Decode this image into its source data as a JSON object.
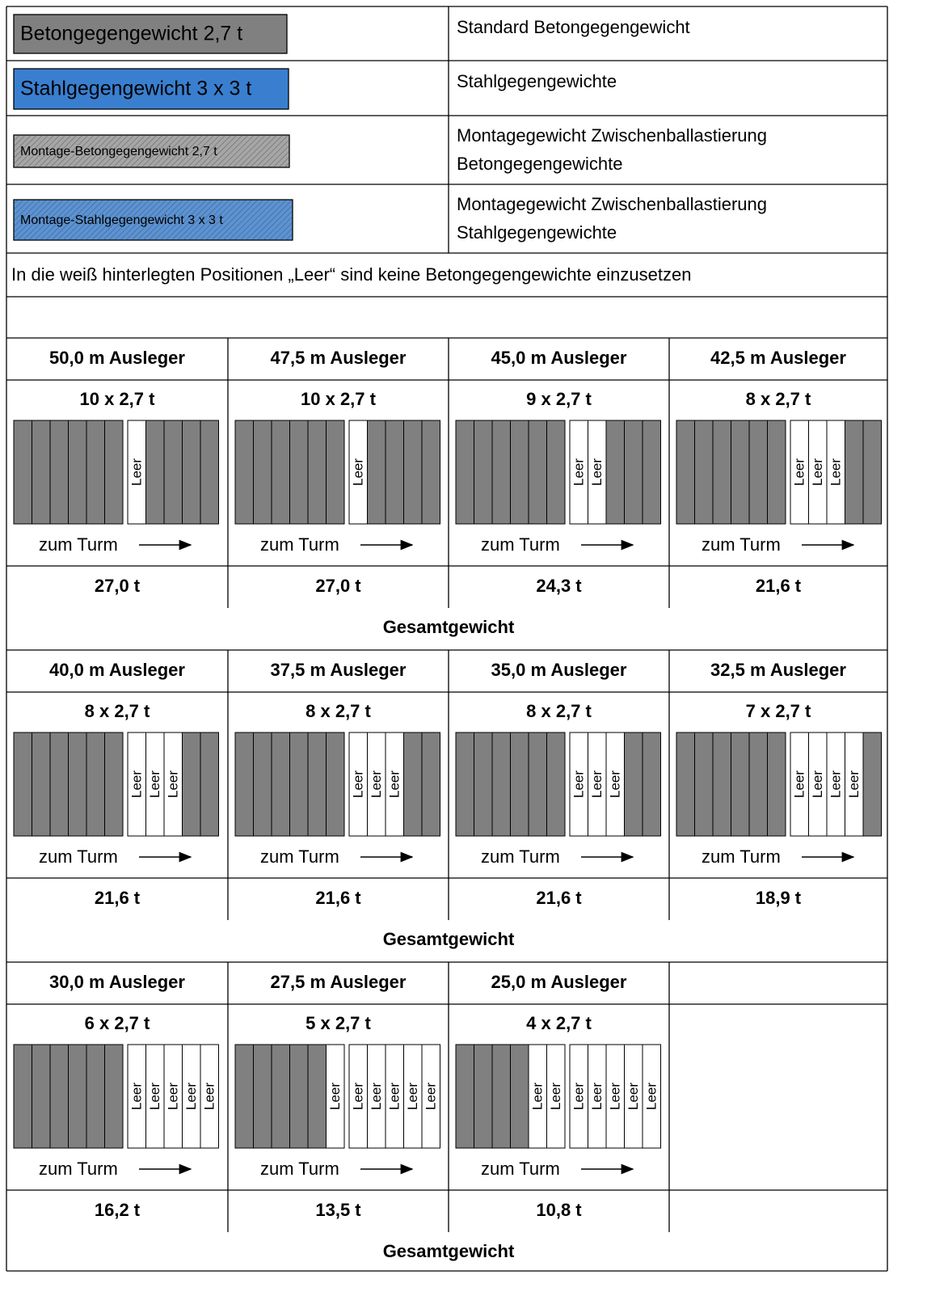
{
  "legend": [
    {
      "label": "Betongegengewicht 2,7 t",
      "description": [
        "Standard Betongegengewicht"
      ],
      "color": "#808080",
      "hatched": false
    },
    {
      "label": "Stahlgegengewicht 3 x 3 t",
      "description": [
        "Stahlgegengewichte"
      ],
      "color": "#3a7fcf",
      "hatched": false
    },
    {
      "label": "Montage-Betongegengewicht 2,7 t",
      "description": [
        "Montagegewicht Zwischenballastierung",
        "Betongegengewichte"
      ],
      "color": "#a6a6a6",
      "hatched": true
    },
    {
      "label": "Montage-Stahlgegengewicht 3 x 3 t",
      "description": [
        "Montagegewicht Zwischenballastierung",
        "Stahlgegengewichte"
      ],
      "color": "#5b93d4",
      "hatched": true
    }
  ],
  "note": "In die weiß hinterlegten Positionen „Leer“ sind keine Betongegengewichte einzusetzen",
  "groups": [
    {
      "cells": [
        {
          "boom": "50,0 m Ausleger",
          "count": "10 x 2,7 t",
          "left_blocks": 6,
          "left_empty": [],
          "right_empty": [
            "Leer"
          ],
          "right_blocks": 4,
          "direction": "zum Turm",
          "total": "27,0 t"
        },
        {
          "boom": "47,5 m Ausleger",
          "count": "10 x 2,7 t",
          "left_blocks": 6,
          "left_empty": [],
          "right_empty": [
            "Leer"
          ],
          "right_blocks": 4,
          "direction": "zum Turm",
          "total": "27,0 t"
        },
        {
          "boom": "45,0 m Ausleger",
          "count": "9 x 2,7 t",
          "left_blocks": 6,
          "left_empty": [],
          "right_empty": [
            "Leer",
            "Leer"
          ],
          "right_blocks": 3,
          "direction": "zum Turm",
          "total": "24,3 t"
        },
        {
          "boom": "42,5 m Ausleger",
          "count": "8 x 2,7 t",
          "left_blocks": 6,
          "left_empty": [],
          "right_empty": [
            "Leer",
            "Leer",
            "Leer"
          ],
          "right_blocks": 2,
          "direction": "zum Turm",
          "total": "21,6 t"
        }
      ],
      "footer": "Gesamtgewicht"
    },
    {
      "cells": [
        {
          "boom": "40,0 m Ausleger",
          "count": "8 x 2,7 t",
          "left_blocks": 6,
          "left_empty": [],
          "right_empty": [
            "Leer",
            "Leer",
            "Leer"
          ],
          "right_blocks": 2,
          "direction": "zum Turm",
          "total": "21,6 t"
        },
        {
          "boom": "37,5 m Ausleger",
          "count": "8 x 2,7 t",
          "left_blocks": 6,
          "left_empty": [],
          "right_empty": [
            "Leer",
            "Leer",
            "Leer"
          ],
          "right_blocks": 2,
          "direction": "zum Turm",
          "total": "21,6 t"
        },
        {
          "boom": "35,0 m Ausleger",
          "count": "8 x 2,7 t",
          "left_blocks": 6,
          "left_empty": [],
          "right_empty": [
            "Leer",
            "Leer",
            "Leer"
          ],
          "right_blocks": 2,
          "direction": "zum Turm",
          "total": "21,6 t"
        },
        {
          "boom": "32,5 m Ausleger",
          "count": "7 x 2,7 t",
          "left_blocks": 6,
          "left_empty": [],
          "right_empty": [
            "Leer",
            "Leer",
            "Leer",
            "Leer"
          ],
          "right_blocks": 1,
          "direction": "zum Turm",
          "total": "18,9 t"
        }
      ],
      "footer": "Gesamtgewicht"
    },
    {
      "cells": [
        {
          "boom": "30,0 m Ausleger",
          "count": "6 x 2,7 t",
          "left_blocks": 6,
          "left_empty": [],
          "right_empty": [
            "Leer",
            "Leer",
            "Leer",
            "Leer",
            "Leer"
          ],
          "right_blocks": 0,
          "direction": "zum Turm",
          "total": "16,2 t"
        },
        {
          "boom": "27,5 m Ausleger",
          "count": "5 x 2,7 t",
          "left_blocks": 5,
          "left_empty": [
            "Leer"
          ],
          "right_empty": [
            "Leer",
            "Leer",
            "Leer",
            "Leer",
            "Leer"
          ],
          "right_blocks": 0,
          "direction": "zum Turm",
          "total": "13,5 t"
        },
        {
          "boom": "25,0 m Ausleger",
          "count": "4 x 2,7 t",
          "left_blocks": 4,
          "left_empty": [
            "Leer",
            "Leer"
          ],
          "right_empty": [
            "Leer",
            "Leer",
            "Leer",
            "Leer",
            "Leer"
          ],
          "right_blocks": 0,
          "direction": "zum Turm",
          "total": "10,8 t"
        }
      ],
      "footer": "Gesamtgewicht"
    }
  ]
}
